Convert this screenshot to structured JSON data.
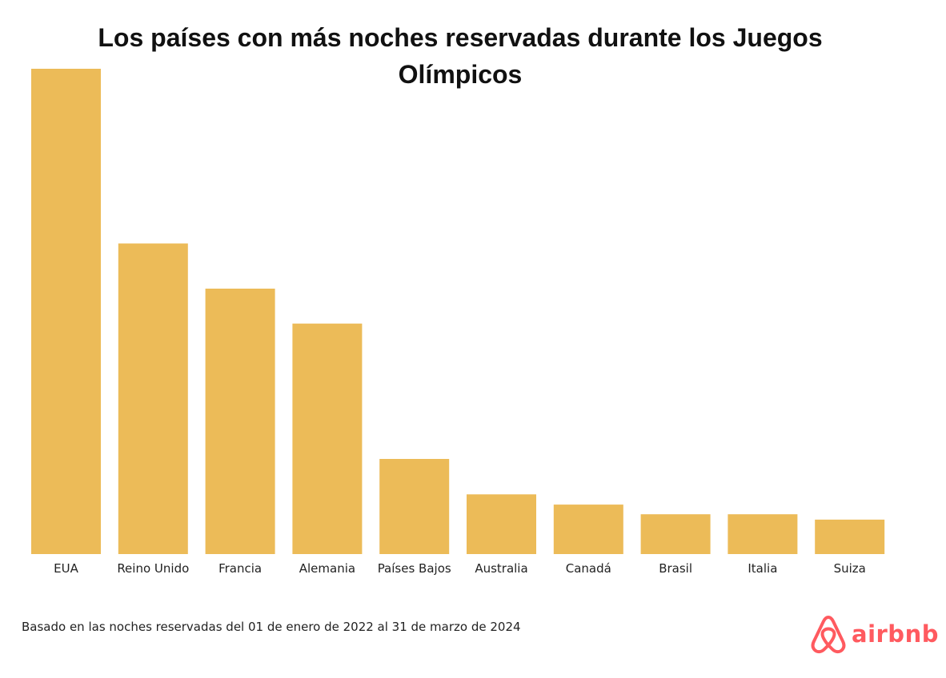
{
  "chart_data": {
    "type": "bar",
    "title": "Los países con más noches reservadas durante los Juegos Olímpicos",
    "categories": [
      "EUA",
      "Reino Unido",
      "Francia",
      "Alemania",
      "Países Bajos",
      "Australia",
      "Canadá",
      "Brasil",
      "Italia",
      "Suiza"
    ],
    "values": [
      100,
      64,
      54.7,
      47.5,
      19.6,
      12.3,
      10.2,
      8.2,
      8.2,
      7.1
    ],
    "ylim": [
      0,
      100
    ],
    "grid": false,
    "legend": "none",
    "bar_color": "#ecbb58"
  },
  "footnote": "Basado en las noches reservadas del 01 de enero de 2022 al 31 de marzo de 2024",
  "logo": {
    "wordmark": "airbnb",
    "icon": "airbnb-belo-icon",
    "color": "#ff5a5f"
  }
}
